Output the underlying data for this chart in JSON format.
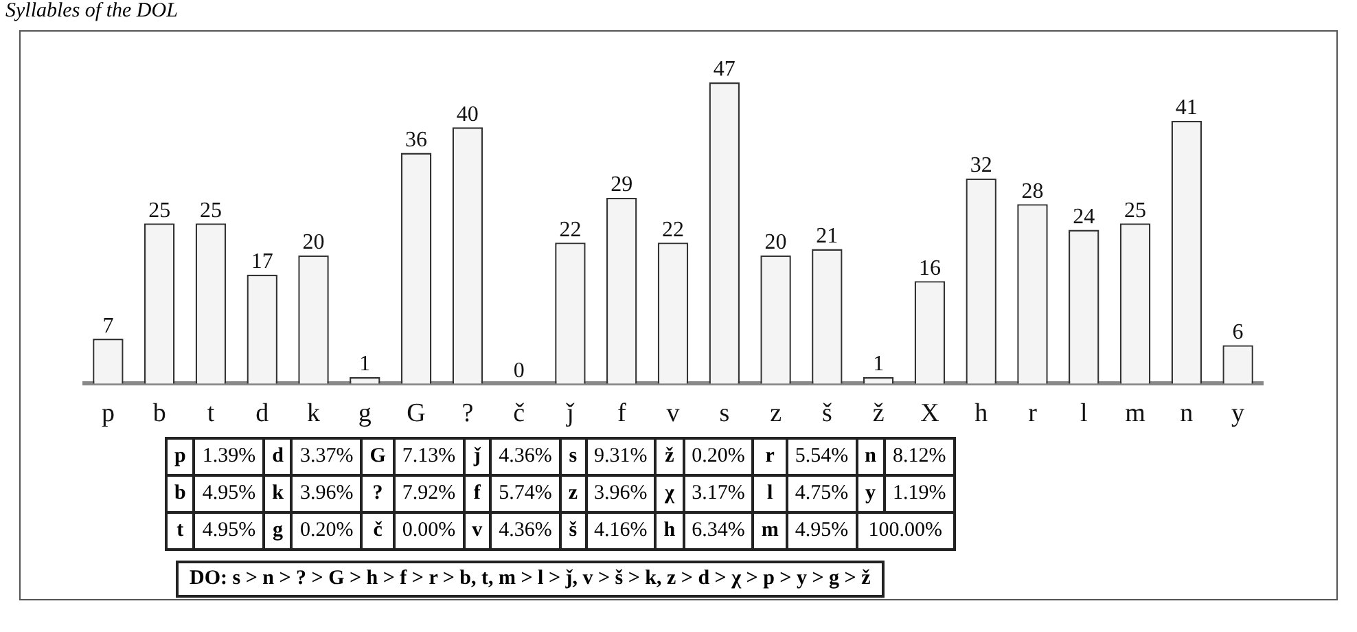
{
  "chart_data": {
    "type": "bar",
    "title": "Syllables of the DOL",
    "categories": [
      "p",
      "b",
      "t",
      "d",
      "k",
      "g",
      "G",
      "?",
      "č",
      "ǰ",
      "f",
      "v",
      "s",
      "z",
      "š",
      "ž",
      "X",
      "h",
      "r",
      "l",
      "m",
      "n",
      "y"
    ],
    "values": [
      7,
      25,
      25,
      17,
      20,
      1,
      36,
      40,
      0,
      22,
      29,
      22,
      47,
      20,
      21,
      1,
      16,
      32,
      28,
      24,
      25,
      41,
      6
    ],
    "color": "#f4f4f4",
    "data_labels": true,
    "tick_labels": "x",
    "grid": false,
    "legend": false,
    "annotations": [
      "p",
      "1.39%",
      "d",
      "3.37%",
      "G",
      "7.13%",
      "ǰ",
      "4.36%",
      "s",
      "9.31%",
      "ž",
      "0.20%",
      "r",
      "5.54%",
      "n",
      "8.12%",
      "b",
      "4.95%",
      "k",
      "3.96%",
      "?",
      "7.92%",
      "f",
      "5.74%",
      "z",
      "3.96%",
      "χ",
      "3.17%",
      "l",
      "4.75%",
      "y",
      "1.19%",
      "t",
      "4.95%",
      "g",
      "0.20%",
      "č",
      "0.00%",
      "v",
      "4.36%",
      "š",
      "4.16%",
      "h",
      "6.34%",
      "m",
      "4.95%",
      "100.00%",
      "DO: s > n > ? > G > h > f > r > b, t, m > l > ǰ, v > š > k, z > d > χ > p > y > g > ž"
    ]
  }
}
